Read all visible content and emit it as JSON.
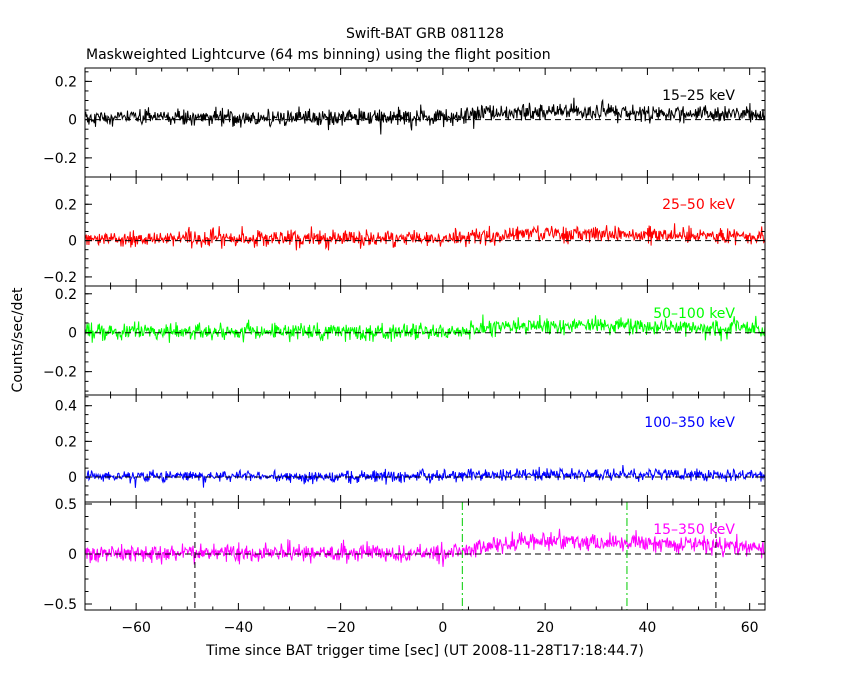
{
  "chart_data": {
    "type": "line",
    "title": "Swift-BAT GRB 081128",
    "subtitle": "Maskweighted Lightcurve (64 ms binning) using the flight position",
    "xlabel": "Time since BAT trigger time [sec] (UT 2008-11-28T17:18:44.7)",
    "ylabel": "Counts/sec/det",
    "xlim": [
      -70,
      63
    ],
    "xticks": [
      -60,
      -40,
      -20,
      0,
      20,
      40,
      60
    ],
    "x_tick_labels": [
      "−60",
      "−40",
      "−20",
      "0",
      "20",
      "40",
      "60"
    ],
    "bin_seconds": 0.064,
    "grid": false,
    "panels": [
      {
        "label": "15–25 keV",
        "color": "#000000",
        "ylim": [
          -0.3,
          0.27
        ],
        "yticks": [
          -0.2,
          0,
          0.2
        ],
        "y_tick_labels": [
          "−0.2",
          "0",
          "0.2"
        ],
        "baseline": 0.01,
        "noise_sigma": 0.022,
        "pulse": {
          "start": 0,
          "peak": 18,
          "end": 62,
          "amplitude": 0.035
        }
      },
      {
        "label": "25–50 keV",
        "color": "#ff0000",
        "ylim": [
          -0.25,
          0.35
        ],
        "yticks": [
          -0.2,
          0,
          0.2
        ],
        "y_tick_labels": [
          "−0.2",
          "0",
          "0.2"
        ],
        "baseline": 0.01,
        "noise_sigma": 0.022,
        "pulse": {
          "start": 0,
          "peak": 18,
          "end": 62,
          "amplitude": 0.035
        }
      },
      {
        "label": "50–100 keV",
        "color": "#00ff00",
        "ylim": [
          -0.32,
          0.24
        ],
        "yticks": [
          -0.2,
          0,
          0.2
        ],
        "y_tick_labels": [
          "−0.2",
          "0",
          "0.2"
        ],
        "baseline": 0.005,
        "noise_sigma": 0.022,
        "pulse": {
          "start": 0,
          "peak": 18,
          "end": 62,
          "amplitude": 0.035
        }
      },
      {
        "label": "100–350 keV",
        "color": "#0000ff",
        "ylim": [
          -0.14,
          0.46
        ],
        "yticks": [
          0,
          0.2,
          0.4
        ],
        "y_tick_labels": [
          "0",
          "0.2",
          "0.4"
        ],
        "baseline": 0.005,
        "noise_sigma": 0.016,
        "pulse": {
          "start": 0,
          "peak": 18,
          "end": 62,
          "amplitude": 0.012
        }
      },
      {
        "label": "15–350 keV",
        "color": "#ff00ff",
        "ylim": [
          -0.56,
          0.52
        ],
        "yticks": [
          -0.5,
          0,
          0.5
        ],
        "y_tick_labels": [
          "−0.5",
          "0",
          "0.5"
        ],
        "baseline": 0.01,
        "noise_sigma": 0.045,
        "pulse": {
          "start": 0,
          "peak": 18,
          "end": 62,
          "amplitude": 0.13
        },
        "markers": [
          {
            "x": -48.5,
            "color": "#000000",
            "style": "dashed"
          },
          {
            "x": 3.8,
            "color": "#00cc00",
            "style": "dashdot"
          },
          {
            "x": 36.0,
            "color": "#00cc00",
            "style": "dashdot"
          },
          {
            "x": 53.4,
            "color": "#000000",
            "style": "dashed"
          }
        ]
      }
    ]
  }
}
